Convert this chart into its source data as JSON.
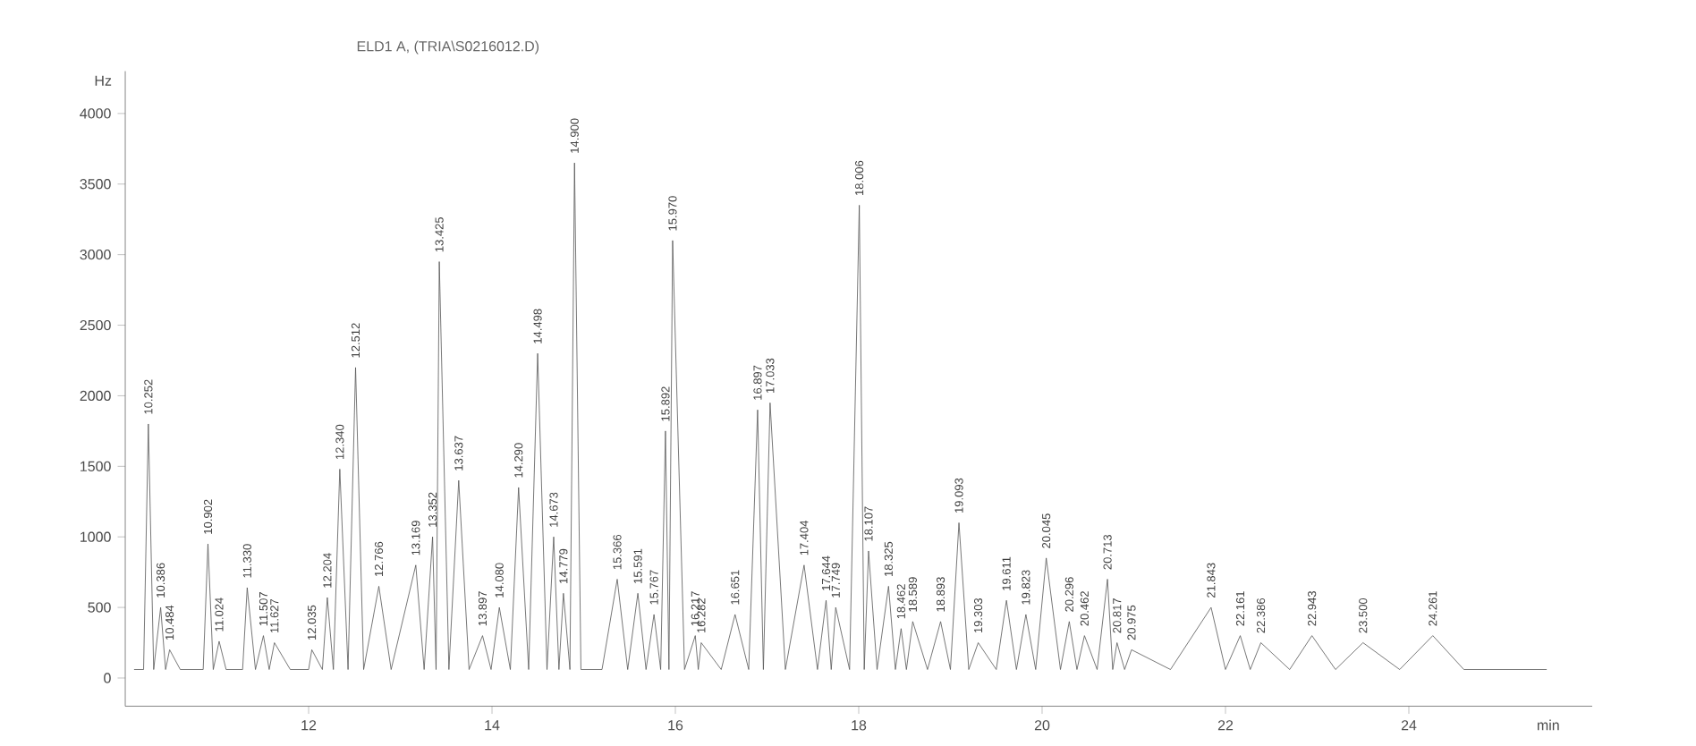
{
  "chart_data": {
    "type": "line",
    "title": "ELD1 A, (TRIA\\S0216012.D)",
    "xlabel": "min",
    "ylabel": "Hz",
    "xlim": [
      10,
      26
    ],
    "ylim": [
      -200,
      4300
    ],
    "xticks": [
      12,
      14,
      16,
      18,
      20,
      22,
      24
    ],
    "yticks": [
      0,
      500,
      1000,
      1500,
      2000,
      2500,
      3000,
      3500,
      4000
    ],
    "line_style": "solid",
    "marker": "none",
    "series": [
      {
        "color": "#555555",
        "x": [
          10.1,
          10.2,
          10.252,
          10.31,
          10.386,
          10.44,
          10.484,
          10.6,
          10.85,
          10.902,
          10.96,
          11.024,
          11.1,
          11.28,
          11.33,
          11.42,
          11.507,
          11.57,
          11.627,
          11.8,
          12.0,
          12.035,
          12.15,
          12.204,
          12.27,
          12.34,
          12.43,
          12.512,
          12.6,
          12.766,
          12.9,
          13.169,
          13.26,
          13.352,
          13.39,
          13.425,
          13.53,
          13.637,
          13.75,
          13.897,
          13.99,
          14.08,
          14.2,
          14.29,
          14.4,
          14.498,
          14.6,
          14.673,
          14.73,
          14.779,
          14.85,
          14.9,
          14.97,
          15.2,
          15.366,
          15.48,
          15.591,
          15.68,
          15.767,
          15.84,
          15.892,
          15.93,
          15.97,
          16.1,
          16.217,
          16.25,
          16.282,
          16.5,
          16.651,
          16.8,
          16.897,
          16.96,
          17.033,
          17.2,
          17.404,
          17.55,
          17.644,
          17.7,
          17.749,
          17.9,
          18.006,
          18.06,
          18.107,
          18.2,
          18.325,
          18.4,
          18.462,
          18.52,
          18.589,
          18.75,
          18.893,
          19.0,
          19.093,
          19.2,
          19.303,
          19.5,
          19.611,
          19.72,
          19.823,
          19.93,
          20.045,
          20.2,
          20.296,
          20.38,
          20.462,
          20.6,
          20.713,
          20.77,
          20.817,
          20.9,
          20.975,
          21.4,
          21.843,
          22.0,
          22.161,
          22.27,
          22.386,
          22.7,
          22.943,
          23.2,
          23.5,
          23.9,
          24.261,
          24.6,
          25.5
        ],
        "values": [
          60,
          60,
          1800,
          60,
          500,
          60,
          200,
          60,
          60,
          950,
          60,
          260,
          60,
          60,
          640,
          60,
          300,
          60,
          250,
          60,
          60,
          200,
          60,
          570,
          60,
          1480,
          60,
          2200,
          60,
          650,
          60,
          800,
          60,
          1000,
          60,
          2950,
          60,
          1400,
          60,
          300,
          60,
          500,
          60,
          1350,
          60,
          2300,
          60,
          1000,
          60,
          600,
          60,
          3650,
          60,
          60,
          700,
          60,
          600,
          60,
          450,
          60,
          1750,
          60,
          3100,
          60,
          300,
          60,
          250,
          60,
          450,
          60,
          1900,
          60,
          1950,
          60,
          800,
          60,
          550,
          60,
          500,
          60,
          3350,
          60,
          900,
          60,
          650,
          60,
          350,
          60,
          400,
          60,
          400,
          60,
          1100,
          60,
          250,
          60,
          550,
          60,
          450,
          60,
          850,
          60,
          400,
          60,
          300,
          60,
          700,
          60,
          250,
          60,
          200,
          60,
          500,
          60,
          300,
          60,
          250,
          60,
          300,
          60,
          250,
          60,
          300,
          60,
          60
        ]
      }
    ],
    "annotations": [
      {
        "text": "10.252",
        "x": 10.252,
        "y": 1800
      },
      {
        "text": "10.386",
        "x": 10.386,
        "y": 500
      },
      {
        "text": "10.484",
        "x": 10.484,
        "y": 200
      },
      {
        "text": "10.902",
        "x": 10.902,
        "y": 950
      },
      {
        "text": "11.024",
        "x": 11.024,
        "y": 260
      },
      {
        "text": "11.330",
        "x": 11.33,
        "y": 640
      },
      {
        "text": "11.507",
        "x": 11.507,
        "y": 300
      },
      {
        "text": "11.627",
        "x": 11.627,
        "y": 250
      },
      {
        "text": "12.035",
        "x": 12.035,
        "y": 200
      },
      {
        "text": "12.204",
        "x": 12.204,
        "y": 570
      },
      {
        "text": "12.340",
        "x": 12.34,
        "y": 1480
      },
      {
        "text": "12.512",
        "x": 12.512,
        "y": 2200
      },
      {
        "text": "12.766",
        "x": 12.766,
        "y": 650
      },
      {
        "text": "13.169",
        "x": 13.169,
        "y": 800
      },
      {
        "text": "13.352",
        "x": 13.352,
        "y": 1000
      },
      {
        "text": "13.425",
        "x": 13.425,
        "y": 2950
      },
      {
        "text": "13.637",
        "x": 13.637,
        "y": 1400
      },
      {
        "text": "13.897",
        "x": 13.897,
        "y": 300
      },
      {
        "text": "14.080",
        "x": 14.08,
        "y": 500
      },
      {
        "text": "14.290",
        "x": 14.29,
        "y": 1350
      },
      {
        "text": "14.498",
        "x": 14.498,
        "y": 2300
      },
      {
        "text": "14.673",
        "x": 14.673,
        "y": 1000
      },
      {
        "text": "14.779",
        "x": 14.779,
        "y": 600
      },
      {
        "text": "14.900",
        "x": 14.9,
        "y": 3650
      },
      {
        "text": "15.366",
        "x": 15.366,
        "y": 700
      },
      {
        "text": "15.591",
        "x": 15.591,
        "y": 600
      },
      {
        "text": "15.767",
        "x": 15.767,
        "y": 450
      },
      {
        "text": "15.892",
        "x": 15.892,
        "y": 1750
      },
      {
        "text": "15.970",
        "x": 15.97,
        "y": 3100
      },
      {
        "text": "16.217",
        "x": 16.217,
        "y": 300
      },
      {
        "text": "16.282",
        "x": 16.282,
        "y": 250
      },
      {
        "text": "16.651",
        "x": 16.651,
        "y": 450
      },
      {
        "text": "16.897",
        "x": 16.897,
        "y": 1900
      },
      {
        "text": "17.033",
        "x": 17.033,
        "y": 1950
      },
      {
        "text": "17.404",
        "x": 17.404,
        "y": 800
      },
      {
        "text": "17.644",
        "x": 17.644,
        "y": 550
      },
      {
        "text": "17.749",
        "x": 17.749,
        "y": 500
      },
      {
        "text": "18.006",
        "x": 18.006,
        "y": 3350
      },
      {
        "text": "18.107",
        "x": 18.107,
        "y": 900
      },
      {
        "text": "18.325",
        "x": 18.325,
        "y": 650
      },
      {
        "text": "18.462",
        "x": 18.462,
        "y": 350
      },
      {
        "text": "18.589",
        "x": 18.589,
        "y": 400
      },
      {
        "text": "18.893",
        "x": 18.893,
        "y": 400
      },
      {
        "text": "19.093",
        "x": 19.093,
        "y": 1100
      },
      {
        "text": "19.303",
        "x": 19.303,
        "y": 250
      },
      {
        "text": "19.611",
        "x": 19.611,
        "y": 550
      },
      {
        "text": "19.823",
        "x": 19.823,
        "y": 450
      },
      {
        "text": "20.045",
        "x": 20.045,
        "y": 850
      },
      {
        "text": "20.296",
        "x": 20.296,
        "y": 400
      },
      {
        "text": "20.462",
        "x": 20.462,
        "y": 300
      },
      {
        "text": "20.713",
        "x": 20.713,
        "y": 700
      },
      {
        "text": "20.817",
        "x": 20.817,
        "y": 250
      },
      {
        "text": "20.975",
        "x": 20.975,
        "y": 200
      },
      {
        "text": "21.843",
        "x": 21.843,
        "y": 500
      },
      {
        "text": "22.161",
        "x": 22.161,
        "y": 300
      },
      {
        "text": "22.386",
        "x": 22.386,
        "y": 250
      },
      {
        "text": "22.943",
        "x": 22.943,
        "y": 300
      },
      {
        "text": "23.500",
        "x": 23.5,
        "y": 250
      },
      {
        "text": "24.261",
        "x": 24.261,
        "y": 300
      }
    ]
  }
}
